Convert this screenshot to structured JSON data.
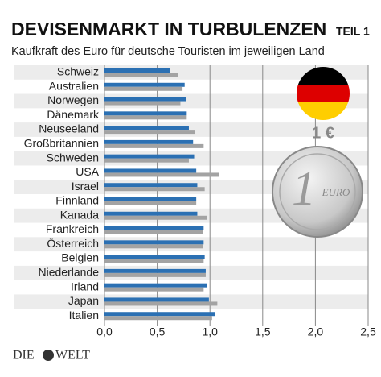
{
  "chart_data": {
    "type": "hbar",
    "title": "DEVISENMARKT IN TURBULENZEN",
    "part": "TEIL 1",
    "subtitle": "Kaufkraft des Euro für deutsche Touristen im jeweiligen Land",
    "categories": [
      "Schweiz",
      "Australien",
      "Norwegen",
      "Dänemark",
      "Neuseeland",
      "Großbritannien",
      "Schweden",
      "USA",
      "Israel",
      "Finnland",
      "Kanada",
      "Frankreich",
      "Österreich",
      "Belgien",
      "Niederlande",
      "Irland",
      "Japan",
      "Italien"
    ],
    "series": [
      {
        "color": "#2b70b3",
        "values": [
          0.62,
          0.76,
          0.77,
          0.78,
          0.8,
          0.84,
          0.85,
          0.87,
          0.88,
          0.87,
          0.88,
          0.94,
          0.94,
          0.95,
          0.96,
          0.97,
          0.99,
          1.05
        ]
      },
      {
        "color": "#a3a3a3",
        "values": [
          0.7,
          0.74,
          0.72,
          0.78,
          0.86,
          0.94,
          0.8,
          1.09,
          0.95,
          0.87,
          0.97,
          0.93,
          0.93,
          0.94,
          0.96,
          0.94,
          1.07,
          1.02
        ]
      }
    ],
    "xlim": [
      0,
      2.5
    ],
    "xticks": [
      {
        "value": 0,
        "label": "0,0"
      },
      {
        "value": 0.5,
        "label": "0,5"
      },
      {
        "value": 1,
        "label": "1,0"
      },
      {
        "value": 1.5,
        "label": "1,5"
      },
      {
        "value": 2,
        "label": "2,0"
      },
      {
        "value": 2.5,
        "label": "2,5"
      }
    ],
    "grid": true,
    "annotation": "1 €",
    "coin": {
      "number": "1",
      "word": "EURO"
    },
    "brand": [
      "DIE",
      "WELT"
    ]
  }
}
